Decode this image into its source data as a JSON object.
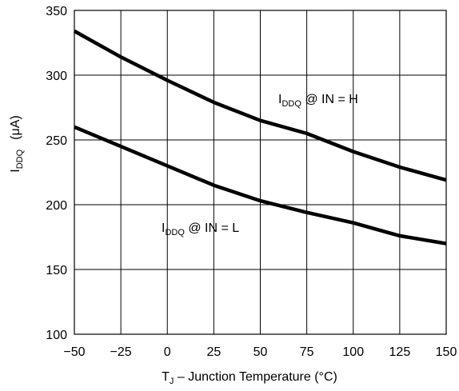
{
  "chart_data": {
    "type": "line",
    "x": [
      -50,
      -25,
      0,
      25,
      50,
      75,
      100,
      125,
      150
    ],
    "xlim": [
      -50,
      150
    ],
    "ylim": [
      100,
      350
    ],
    "x_ticks": [
      "−50",
      "−25",
      "0",
      "25",
      "50",
      "75",
      "100",
      "125",
      "150"
    ],
    "y_ticks": [
      "100",
      "150",
      "200",
      "250",
      "300",
      "350"
    ],
    "grid": true,
    "xlabel": {
      "main": "T",
      "sub": "J",
      "rest": " – Junction Temperature (°C)"
    },
    "ylabel": {
      "main": "I",
      "sub": "DDQ",
      "rest": "(μA)"
    },
    "series": [
      {
        "label_main": "I",
        "label_sub": "DDQ",
        "label_rest": " @ IN = H",
        "values": [
          334,
          314,
          296,
          279,
          265,
          255,
          241,
          229,
          219
        ]
      },
      {
        "label_main": "I",
        "label_sub": "DDQ",
        "label_rest": " @ IN = L",
        "values": [
          260,
          245,
          230,
          215,
          203,
          194,
          186,
          176,
          170
        ]
      }
    ]
  }
}
